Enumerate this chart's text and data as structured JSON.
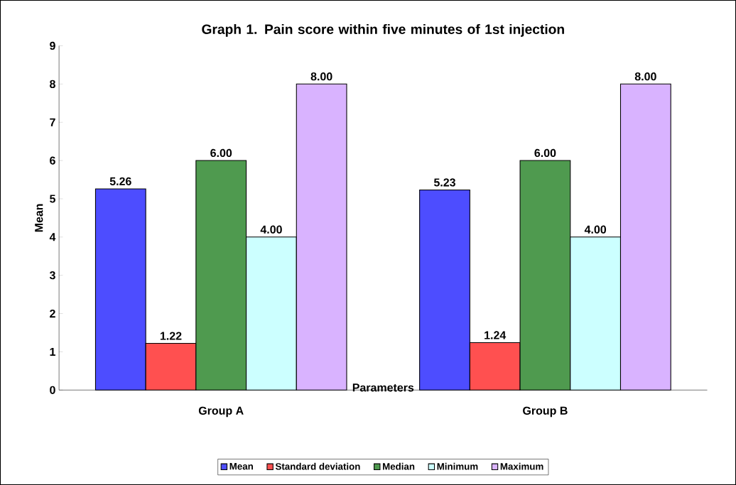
{
  "chart_data": {
    "type": "bar",
    "title": "Graph 1. Pain score within five minutes of 1st injection",
    "xlabel": "Parameters",
    "ylabel": "Mean",
    "categories": [
      "Group A",
      "Group B"
    ],
    "series": [
      {
        "name": "Mean",
        "color": "#4d4dff",
        "values": [
          5.26,
          5.23
        ],
        "value_labels": [
          "5.26",
          "5.23"
        ]
      },
      {
        "name": "Standard deviation",
        "color": "#ff5050",
        "values": [
          1.22,
          1.24
        ],
        "value_labels": [
          "1.22",
          "1.24"
        ]
      },
      {
        "name": "Median",
        "color": "#4f9a4f",
        "values": [
          6.0,
          6.0
        ],
        "value_labels": [
          "6.00",
          "6.00"
        ]
      },
      {
        "name": "Minimum",
        "color": "#ccffff",
        "values": [
          4.0,
          4.0
        ],
        "value_labels": [
          "4.00",
          "4.00"
        ]
      },
      {
        "name": "Maximum",
        "color": "#d9b3ff",
        "values": [
          8.0,
          8.0
        ],
        "value_labels": [
          "8.00",
          "8.00"
        ]
      }
    ],
    "ylim": [
      0,
      9
    ],
    "yticks": [
      0,
      1,
      2,
      3,
      4,
      5,
      6,
      7,
      8,
      9
    ],
    "grid": false,
    "legend": "bottom"
  }
}
